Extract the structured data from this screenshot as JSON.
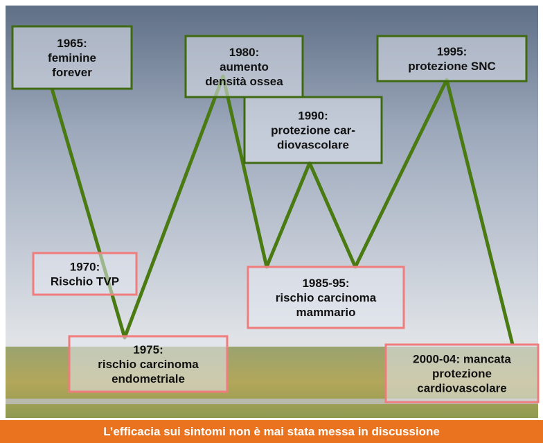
{
  "nodes": [
    {
      "lines": [
        "1965:",
        "feminine",
        "forever"
      ]
    },
    {
      "lines": [
        "1970:",
        "Rischio TVP"
      ]
    },
    {
      "lines": [
        "1975:",
        "rischio carcinoma",
        "endometriale"
      ]
    },
    {
      "lines": [
        "1980:",
        "aumento",
        "densità ossea"
      ]
    },
    {
      "lines": [
        "1985-95:",
        "rischio carcinoma",
        "mammario"
      ]
    },
    {
      "lines": [
        "1990:",
        "protezione car-",
        "diovascolare"
      ]
    },
    {
      "lines": [
        "1995:",
        "protezione SNC"
      ]
    },
    {
      "lines": [
        "2000-04: mancata",
        "protezione",
        "cardiovascolare"
      ]
    }
  ],
  "footer": "L’efficacia sui sintomi non è mai stata messa in discussione"
}
